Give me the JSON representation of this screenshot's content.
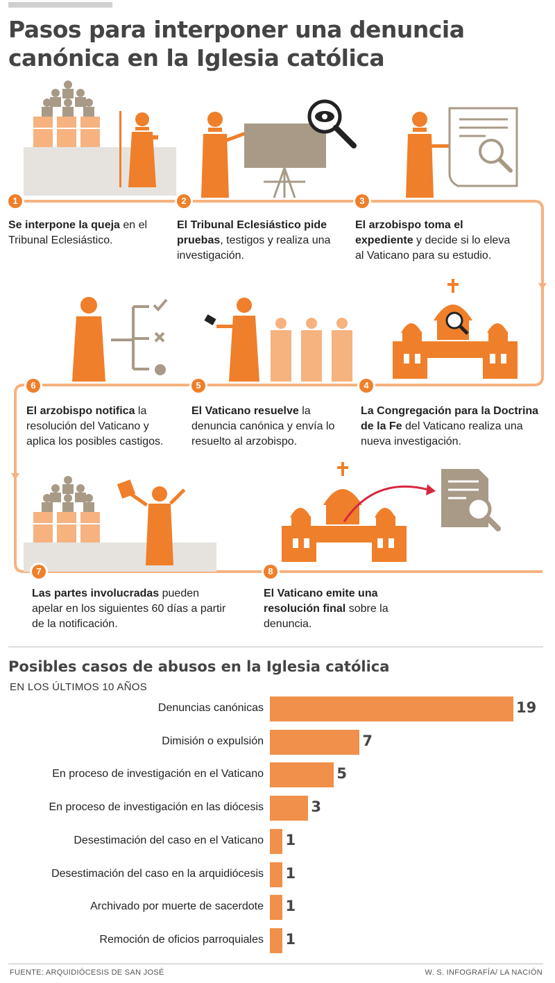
{
  "title": "Pasos para interponer una denuncia canónica en la Iglesia católica",
  "steps": [
    {
      "num": "1",
      "bold": "Se interpone la queja",
      "rest": " en el Tribunal Eclesiástico."
    },
    {
      "num": "2",
      "bold": "El Tribunal Eclesiástico pide pruebas",
      "rest": ", testigos y realiza una investigación."
    },
    {
      "num": "3",
      "bold": "El arzobispo toma el expediente",
      "rest": " y decide si lo eleva al Vaticano para su estudio."
    },
    {
      "num": "4",
      "bold": "La Congregación para la Doctrina de la Fe",
      "rest": " del Vaticano realiza una nueva investigación."
    },
    {
      "num": "5",
      "bold": "El Vaticano resuelve",
      "rest": " la denuncia canónica y envía lo resuelto al arzobispo."
    },
    {
      "num": "6",
      "bold": "El arzobispo notifica",
      "rest": " la resolución del Vaticano y aplica los posibles castigos."
    },
    {
      "num": "7",
      "bold": "Las partes involucradas",
      "rest": " pueden apelar en los siguientes 60 días a partir de la notificación."
    },
    {
      "num": "8",
      "bold": "El Vaticano emite una resolución final",
      "rest": " sobre la denuncia."
    }
  ],
  "colors": {
    "accent": "#ef7f2a",
    "light": "#f6b27f",
    "gray": "#a89a87",
    "arrow": "#d7263d"
  },
  "chart_data": {
    "type": "bar",
    "orientation": "horizontal",
    "title": "Posibles casos de abusos en la Iglesia católica",
    "subtitle": "EN LOS ÚLTIMOS 10 AÑOS",
    "categories": [
      "Denuncias canónicas",
      "Dimisión o expulsión",
      "En proceso de investigación en el Vaticano",
      "En proceso de investigación en las diócesis",
      "Desestimación del caso en el Vaticano",
      "Desestimación del caso en la arquidiócesis",
      "Archivado por muerte de sacerdote",
      "Remoción de oficios parroquiales"
    ],
    "values": [
      19,
      7,
      5,
      3,
      1,
      1,
      1,
      1
    ],
    "xlim": [
      0,
      19
    ]
  },
  "footer": {
    "source": "FUENTE: ARQUIDIÓCESIS DE SAN JOSÉ",
    "credit": "W. S. INFOGRAFÍA/ LA NACIÓN"
  }
}
